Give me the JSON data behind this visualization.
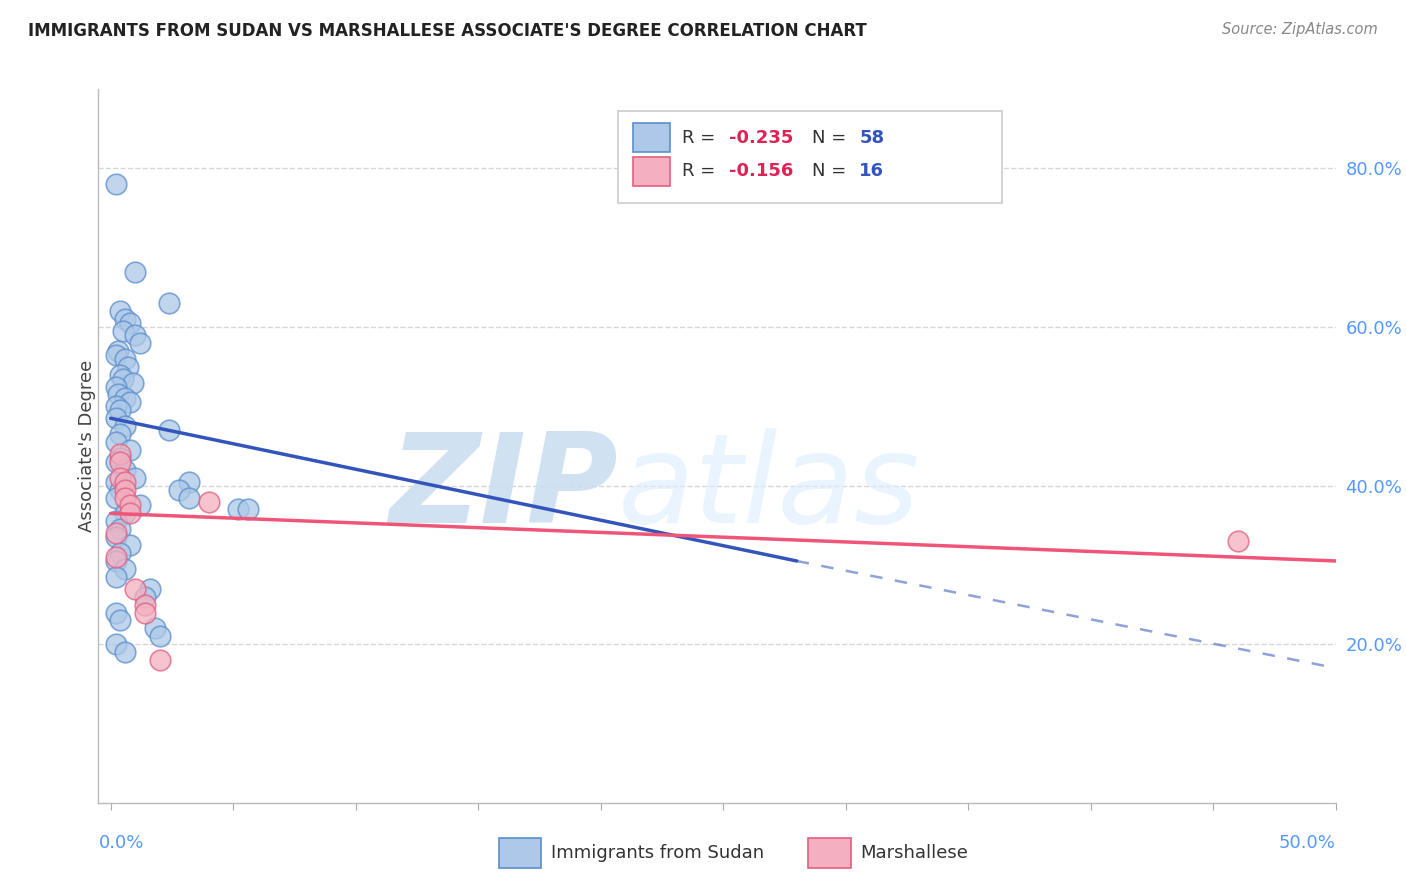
{
  "title": "IMMIGRANTS FROM SUDAN VS MARSHALLESE ASSOCIATE'S DEGREE CORRELATION CHART",
  "source": "Source: ZipAtlas.com",
  "ylabel": "Associate's Degree",
  "sudan_color": "#adc8e8",
  "marshallese_color": "#f4afc0",
  "sudan_edge_color": "#5b8fcc",
  "marshallese_edge_color": "#e06080",
  "sudan_line_color": "#3355bb",
  "marshallese_line_color": "#ee5577",
  "sudan_points": [
    [
      0.2,
      78.0
    ],
    [
      1.0,
      67.0
    ],
    [
      2.4,
      63.0
    ],
    [
      0.4,
      62.0
    ],
    [
      0.6,
      61.0
    ],
    [
      0.8,
      60.5
    ],
    [
      0.5,
      59.5
    ],
    [
      1.0,
      59.0
    ],
    [
      1.2,
      58.0
    ],
    [
      0.3,
      57.0
    ],
    [
      0.2,
      56.5
    ],
    [
      0.6,
      56.0
    ],
    [
      0.7,
      55.0
    ],
    [
      0.4,
      54.0
    ],
    [
      0.5,
      53.5
    ],
    [
      0.9,
      53.0
    ],
    [
      0.2,
      52.5
    ],
    [
      0.3,
      51.5
    ],
    [
      0.6,
      51.0
    ],
    [
      0.8,
      50.5
    ],
    [
      0.2,
      50.0
    ],
    [
      0.4,
      49.5
    ],
    [
      0.2,
      48.5
    ],
    [
      0.6,
      47.5
    ],
    [
      0.4,
      46.5
    ],
    [
      0.2,
      45.5
    ],
    [
      0.8,
      44.5
    ],
    [
      0.4,
      43.5
    ],
    [
      0.2,
      43.0
    ],
    [
      0.6,
      42.0
    ],
    [
      1.0,
      41.0
    ],
    [
      0.2,
      40.5
    ],
    [
      0.4,
      39.5
    ],
    [
      0.2,
      38.5
    ],
    [
      1.2,
      37.5
    ],
    [
      0.6,
      36.5
    ],
    [
      0.2,
      35.5
    ],
    [
      0.4,
      34.5
    ],
    [
      0.2,
      33.5
    ],
    [
      0.8,
      32.5
    ],
    [
      0.4,
      31.5
    ],
    [
      0.2,
      30.5
    ],
    [
      0.6,
      29.5
    ],
    [
      0.2,
      28.5
    ],
    [
      1.6,
      27.0
    ],
    [
      1.4,
      26.0
    ],
    [
      0.2,
      24.0
    ],
    [
      0.4,
      23.0
    ],
    [
      1.8,
      22.0
    ],
    [
      2.0,
      21.0
    ],
    [
      0.2,
      20.0
    ],
    [
      0.6,
      19.0
    ],
    [
      2.4,
      47.0
    ],
    [
      3.2,
      40.5
    ],
    [
      2.8,
      39.5
    ],
    [
      3.2,
      38.5
    ],
    [
      5.2,
      37.0
    ],
    [
      5.6,
      37.0
    ]
  ],
  "marshallese_points": [
    [
      0.2,
      34.0
    ],
    [
      0.2,
      31.0
    ],
    [
      0.4,
      44.0
    ],
    [
      0.4,
      43.0
    ],
    [
      0.4,
      41.0
    ],
    [
      0.6,
      40.5
    ],
    [
      0.6,
      39.5
    ],
    [
      0.6,
      38.5
    ],
    [
      0.8,
      37.5
    ],
    [
      0.8,
      36.5
    ],
    [
      1.0,
      27.0
    ],
    [
      1.4,
      25.0
    ],
    [
      1.4,
      24.0
    ],
    [
      2.0,
      18.0
    ],
    [
      4.0,
      38.0
    ],
    [
      46.0,
      33.0
    ]
  ],
  "sudan_trendline_solid": [
    [
      0.0,
      48.5
    ],
    [
      28.0,
      30.5
    ]
  ],
  "sudan_trendline_dash": [
    [
      28.0,
      30.5
    ],
    [
      50.0,
      17.0
    ]
  ],
  "marshallese_trendline": [
    [
      0.0,
      36.5
    ],
    [
      50.0,
      30.5
    ]
  ],
  "xlim": [
    -0.5,
    50.0
  ],
  "ylim": [
    0.0,
    90.0
  ],
  "x_ticks": [
    0.0,
    5.0,
    10.0,
    15.0,
    20.0,
    25.0,
    30.0,
    35.0,
    40.0,
    45.0,
    50.0
  ],
  "y_ticks_right": [
    20.0,
    40.0,
    60.0,
    80.0
  ],
  "grid_color": "#cccccc",
  "background_color": "#ffffff",
  "tick_label_color": "#5599ff",
  "watermark_zip": "ZIP",
  "watermark_atlas": "atlas",
  "watermark_color": "#c8ddf0"
}
